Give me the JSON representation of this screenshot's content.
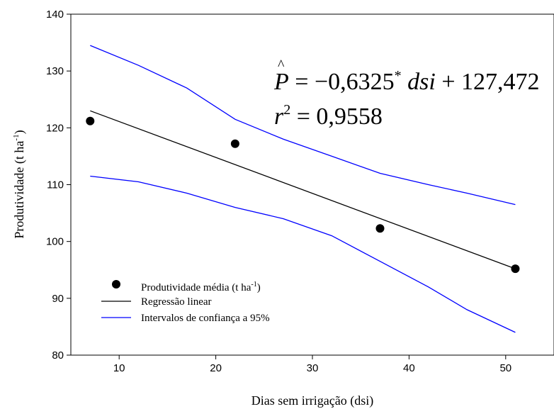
{
  "chart_data": {
    "type": "scatter",
    "xlabel": "Dias sem irrigação (dsi)",
    "ylabel_main": "Produtividade (t ha",
    "ylabel_sup": "-1",
    "ylabel_tail": ")",
    "xlim": [
      5,
      55
    ],
    "ylim": [
      80,
      140
    ],
    "x_ticks": [
      10,
      20,
      30,
      40,
      50
    ],
    "y_ticks": [
      80,
      90,
      100,
      110,
      120,
      130,
      140
    ],
    "series": [
      {
        "name_main": "Produtividade média (t ha",
        "name_sup": "-1",
        "name_tail": ")",
        "kind": "points",
        "color": "#000000",
        "points": [
          [
            7,
            121.2
          ],
          [
            22,
            117.2
          ],
          [
            37,
            102.3
          ],
          [
            51,
            95.2
          ]
        ]
      },
      {
        "name": "Regressão linear",
        "kind": "line",
        "color": "#000000",
        "points": [
          [
            7,
            123.0
          ],
          [
            51,
            95.2
          ]
        ]
      },
      {
        "name": "Intervalos de confiança a 95%",
        "kind": "band-upper",
        "color": "#0000ff",
        "points": [
          [
            7,
            134.5
          ],
          [
            12,
            131.0
          ],
          [
            17,
            127.0
          ],
          [
            22,
            121.5
          ],
          [
            27,
            118.0
          ],
          [
            32,
            115.0
          ],
          [
            37,
            112.0
          ],
          [
            42,
            110.0
          ],
          [
            46,
            108.5
          ],
          [
            51,
            106.5
          ]
        ]
      },
      {
        "name": "Intervalos de confiança a 95%",
        "kind": "band-lower",
        "color": "#0000ff",
        "points": [
          [
            7,
            111.5
          ],
          [
            12,
            110.5
          ],
          [
            17,
            108.5
          ],
          [
            22,
            106.0
          ],
          [
            27,
            104.0
          ],
          [
            32,
            101.0
          ],
          [
            37,
            96.5
          ],
          [
            42,
            92.0
          ],
          [
            46,
            88.0
          ],
          [
            51,
            84.0
          ]
        ]
      }
    ],
    "equation": {
      "lhs": "P",
      "hat": "^",
      "rhs_coef": " = −0,6325",
      "rhs_sup": "*",
      "rhs_var": " dsi",
      "rhs_const": " + 127,472",
      "r2_lhs": "r",
      "r2_sup": "2",
      "r2_rhs": " = 0,9558"
    },
    "legend_position": "bottom-left"
  }
}
